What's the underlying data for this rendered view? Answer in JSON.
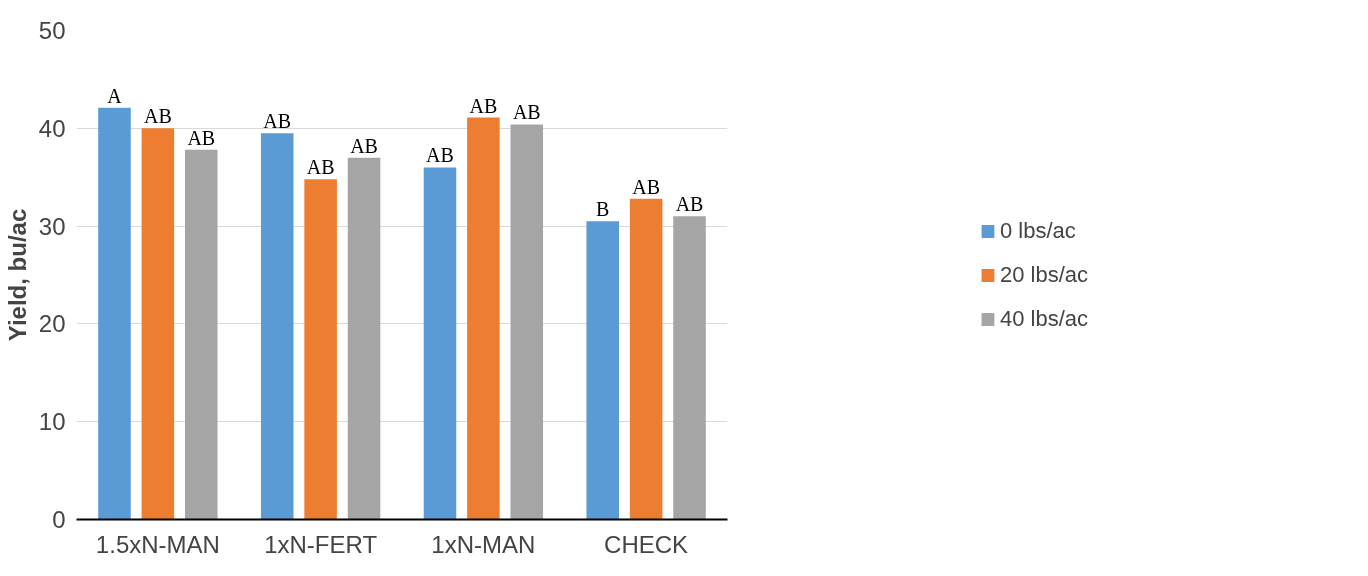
{
  "chart_data": {
    "type": "bar",
    "ylabel": "Yield, bu/ac",
    "categories": [
      "1.5xN-MAN",
      "1xN-FERT",
      "1xN-MAN",
      "CHECK"
    ],
    "series": [
      {
        "name": "0 lbs/ac",
        "color": "#5b9bd5",
        "values": [
          42.1,
          39.5,
          36.0,
          30.5
        ],
        "value_labels": [
          "A",
          "AB",
          "AB",
          "B"
        ]
      },
      {
        "name": "20 lbs/ac",
        "color": "#ed7d31",
        "values": [
          40.0,
          34.8,
          41.1,
          32.8
        ],
        "value_labels": [
          "AB",
          "AB",
          "AB",
          "AB"
        ]
      },
      {
        "name": "40 lbs/ac",
        "color": "#a5a5a5",
        "values": [
          37.8,
          37.0,
          40.4,
          31.0
        ],
        "value_labels": [
          "AB",
          "AB",
          "AB",
          "AB"
        ]
      }
    ],
    "ylim": [
      0,
      50
    ],
    "yticks": [
      0,
      10,
      20,
      30,
      40,
      50
    ],
    "grid": "y",
    "legend": "right"
  }
}
